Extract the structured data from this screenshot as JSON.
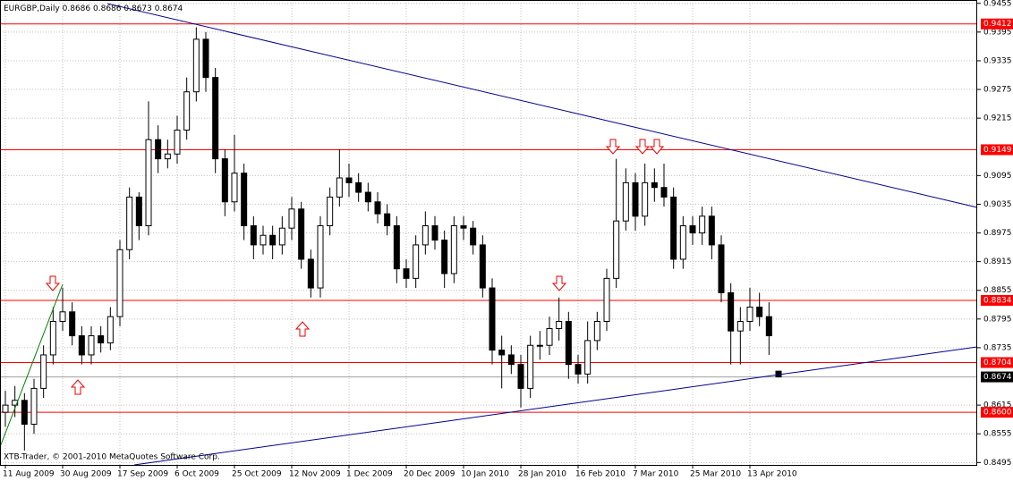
{
  "chart_data": {
    "type": "candlestick",
    "symbol": "EURGBP,Daily",
    "copyright": "XTB-Trader, © 2001-2010 MetaQuotes Software Corp.",
    "categories": [
      "11 Aug 2009",
      null,
      null,
      null,
      null,
      null,
      "30 Aug 2009",
      null,
      null,
      null,
      null,
      null,
      "17 Sep 2009",
      null,
      null,
      null,
      null,
      null,
      "6 Oct 2009",
      null,
      null,
      null,
      null,
      null,
      "25 Oct 2009",
      null,
      null,
      null,
      null,
      null,
      "12 Nov 2009",
      null,
      null,
      null,
      null,
      null,
      "1 Dec 2009",
      null,
      null,
      null,
      null,
      null,
      "20 Dec 2009",
      null,
      null,
      null,
      null,
      null,
      "10 Jan 2010",
      null,
      null,
      null,
      null,
      null,
      "28 Jan 2010",
      null,
      null,
      null,
      null,
      null,
      "16 Feb 2010",
      null,
      null,
      null,
      null,
      null,
      "7 Mar 2010",
      null,
      null,
      null,
      null,
      null,
      "25 Mar 2010",
      null,
      null,
      null,
      null,
      null,
      "13 Apr 2010",
      null,
      null,
      null
    ],
    "open": [
      0.86,
      0.8615,
      0.8625,
      0.8575,
      0.865,
      0.872,
      0.879,
      0.881,
      0.876,
      0.872,
      0.876,
      0.8745,
      0.88,
      0.894,
      0.905,
      0.899,
      0.917,
      0.913,
      0.914,
      0.919,
      0.927,
      0.938,
      0.93,
      0.913,
      0.904,
      0.91,
      0.899,
      0.895,
      0.897,
      0.895,
      0.8985,
      0.9025,
      0.892,
      0.886,
      0.899,
      0.905,
      0.909,
      0.908,
      0.906,
      0.904,
      0.9015,
      0.899,
      0.89,
      0.888,
      0.895,
      0.899,
      0.896,
      0.889,
      0.899,
      0.8985,
      0.895,
      0.886,
      0.873,
      0.872,
      0.87,
      0.865,
      0.874,
      0.874,
      0.8775,
      0.879,
      0.87,
      0.868,
      0.875,
      0.879,
      0.888,
      0.9,
      0.908,
      0.901,
      0.908,
      0.907,
      0.905,
      0.892,
      0.899,
      0.8975,
      0.901,
      0.895,
      0.885,
      0.877,
      0.879,
      0.882,
      0.88,
      0.8686
    ],
    "high": [
      0.8645,
      0.8655,
      0.864,
      0.867,
      0.874,
      0.882,
      0.886,
      0.883,
      0.878,
      0.878,
      0.878,
      0.882,
      0.896,
      0.907,
      0.906,
      0.925,
      0.92,
      0.917,
      0.922,
      0.93,
      0.9405,
      0.9395,
      0.932,
      0.915,
      0.918,
      0.912,
      0.901,
      0.899,
      0.899,
      0.901,
      0.905,
      0.904,
      0.894,
      0.901,
      0.907,
      0.915,
      0.912,
      0.91,
      0.908,
      0.906,
      0.9035,
      0.901,
      0.892,
      0.897,
      0.902,
      0.901,
      0.898,
      0.901,
      0.901,
      0.9,
      0.897,
      0.888,
      0.876,
      0.874,
      0.872,
      0.876,
      0.877,
      0.88,
      0.884,
      0.881,
      0.872,
      0.879,
      0.881,
      0.89,
      0.913,
      0.911,
      0.91,
      0.912,
      0.911,
      0.912,
      0.907,
      0.901,
      0.901,
      0.903,
      0.903,
      0.897,
      0.887,
      0.882,
      0.886,
      0.885,
      0.883,
      0.8686
    ],
    "low": [
      0.857,
      0.859,
      0.852,
      0.8555,
      0.863,
      0.87,
      0.877,
      0.874,
      0.87,
      0.87,
      0.8725,
      0.873,
      0.878,
      0.892,
      0.896,
      0.897,
      0.91,
      0.911,
      0.912,
      0.917,
      0.925,
      0.927,
      0.91,
      0.901,
      0.902,
      0.896,
      0.892,
      0.893,
      0.892,
      0.893,
      0.896,
      0.89,
      0.884,
      0.884,
      0.897,
      0.903,
      0.905,
      0.904,
      0.902,
      0.8995,
      0.897,
      0.887,
      0.886,
      0.886,
      0.893,
      0.894,
      0.886,
      0.887,
      0.896,
      0.893,
      0.884,
      0.87,
      0.865,
      0.868,
      0.861,
      0.863,
      0.871,
      0.872,
      0.875,
      0.867,
      0.866,
      0.866,
      0.873,
      0.877,
      0.886,
      0.898,
      0.898,
      0.899,
      0.904,
      0.903,
      0.89,
      0.89,
      0.895,
      0.895,
      0.892,
      0.883,
      0.87,
      0.87,
      0.877,
      0.878,
      0.872,
      0.8673
    ],
    "close": [
      0.8615,
      0.8625,
      0.8575,
      0.865,
      0.872,
      0.879,
      0.881,
      0.876,
      0.872,
      0.876,
      0.8745,
      0.88,
      0.894,
      0.905,
      0.899,
      0.917,
      0.913,
      0.914,
      0.919,
      0.927,
      0.938,
      0.93,
      0.913,
      0.904,
      0.91,
      0.899,
      0.895,
      0.897,
      0.895,
      0.8985,
      0.9025,
      0.892,
      0.886,
      0.899,
      0.905,
      0.909,
      0.908,
      0.906,
      0.904,
      0.9015,
      0.899,
      0.89,
      0.888,
      0.895,
      0.899,
      0.896,
      0.889,
      0.899,
      0.8985,
      0.895,
      0.886,
      0.873,
      0.872,
      0.87,
      0.865,
      0.874,
      0.874,
      0.8775,
      0.879,
      0.87,
      0.868,
      0.875,
      0.879,
      0.888,
      0.9,
      0.908,
      0.901,
      0.908,
      0.907,
      0.905,
      0.892,
      0.899,
      0.8975,
      0.901,
      0.895,
      0.885,
      0.877,
      0.879,
      0.882,
      0.88,
      0.876,
      0.8674
    ],
    "ylim": [
      0.849,
      0.9462
    ],
    "yticks": [
      0.9455,
      0.9395,
      0.9335,
      0.9275,
      0.9215,
      0.9095,
      0.9035,
      0.8975,
      0.8915,
      0.8855,
      0.8795,
      0.8735,
      0.8615,
      0.8555,
      0.8495
    ],
    "levels": [
      0.9412,
      0.9149,
      0.8834,
      0.8704,
      {
        "value": 0.86,
        "label": "0.8600"
      }
    ],
    "level_color": "#ff0000",
    "grid": true
  }
}
